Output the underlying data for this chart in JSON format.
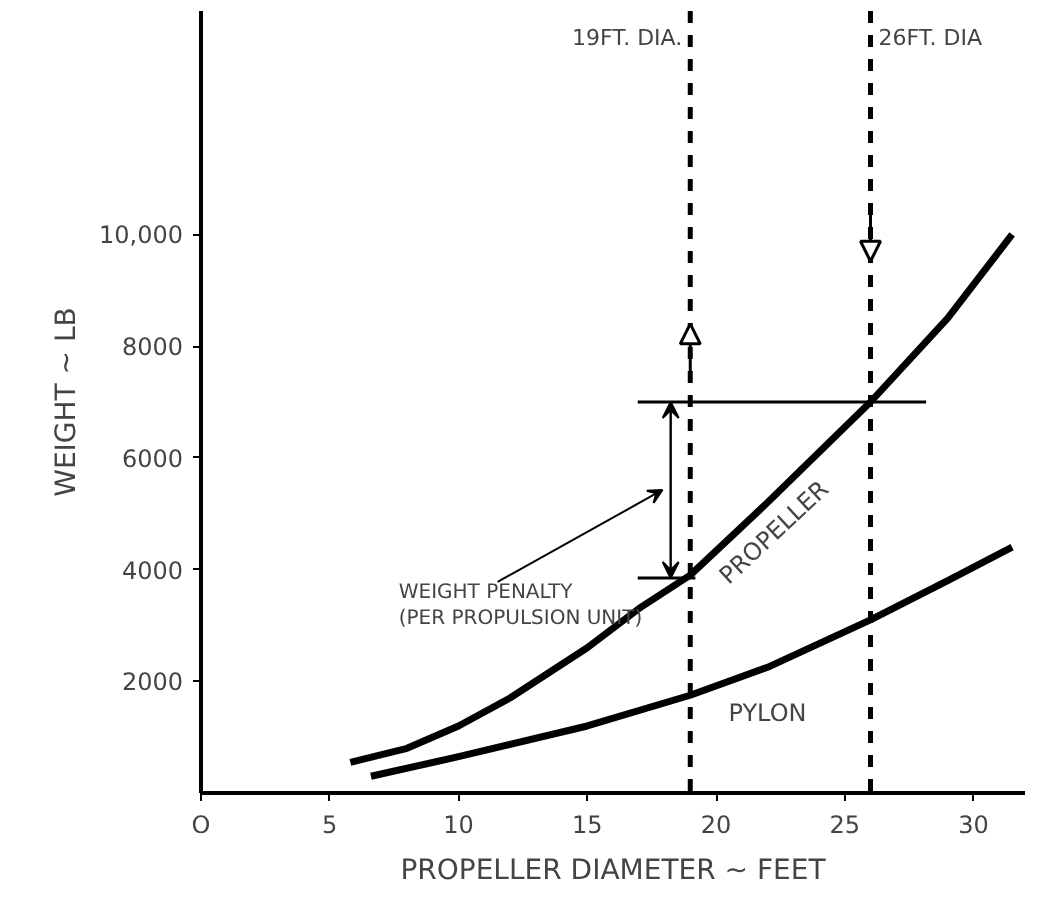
{
  "chart_data": {
    "type": "line",
    "xlabel": "PROPELLER DIAMETER ~ FEET",
    "ylabel": "WEIGHT ~ LB",
    "xlim": [
      0,
      32
    ],
    "ylim": [
      0,
      14000
    ],
    "xticks": [
      {
        "value": 0,
        "label": "O"
      },
      5,
      10,
      15,
      20,
      25,
      30
    ],
    "yticks": [
      2000,
      4000,
      6000,
      8000,
      {
        "value": 10000,
        "label": "10,000"
      }
    ],
    "grid": false,
    "legend": false,
    "marker": "none",
    "line_style": "solid",
    "series": [
      {
        "name": "PROPELLER",
        "color": "#000000",
        "x": [
          5.8,
          8,
          10,
          12,
          15,
          17,
          19,
          22,
          26,
          29,
          31.5
        ],
        "values": [
          550,
          800,
          1200,
          1700,
          2600,
          3300,
          3900,
          5200,
          7000,
          8500,
          10000
        ]
      },
      {
        "name": "PYLON",
        "color": "#000000",
        "x": [
          6.6,
          10,
          15,
          19,
          22,
          26,
          29,
          31.5
        ],
        "values": [
          300,
          650,
          1200,
          1750,
          2250,
          3100,
          3800,
          4400
        ]
      }
    ],
    "ref_lines": [
      {
        "axis": "x",
        "value": 19,
        "label": "19FT. DIA.",
        "line_style": "dashed",
        "color": "#000000"
      },
      {
        "axis": "x",
        "value": 26,
        "label": "26FT. DIA",
        "line_style": "dashed",
        "color": "#000000"
      },
      {
        "axis": "y",
        "value": 7000,
        "label": null,
        "color": "#000000"
      },
      {
        "axis": "y",
        "value": 3850,
        "label": "WEIGHT PENALTY\n(PER PROPULSION UNIT)",
        "color": "#000000"
      }
    ]
  }
}
